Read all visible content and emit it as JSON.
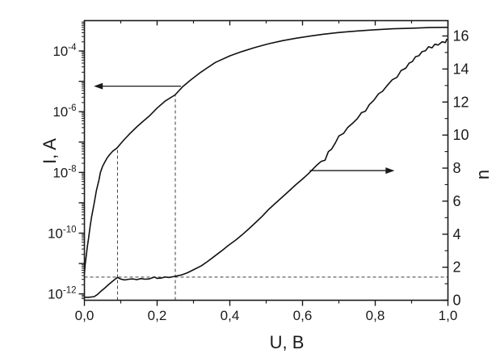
{
  "chart_data": {
    "type": "line",
    "title": "",
    "xlabel": "U, B",
    "x_range": [
      0.0,
      1.0
    ],
    "x_ticks": [
      {
        "v": 0.0,
        "label": "0,0"
      },
      {
        "v": 0.2,
        "label": "0,2"
      },
      {
        "v": 0.4,
        "label": "0,4"
      },
      {
        "v": 0.6,
        "label": "0,6"
      },
      {
        "v": 0.8,
        "label": "0,8"
      },
      {
        "v": 1.0,
        "label": "1,0"
      }
    ],
    "x_minor_ticks": [
      0.1,
      0.3,
      0.5,
      0.7,
      0.9
    ],
    "left_axis": {
      "label": "I, A",
      "scale": "log10",
      "range_log10": [
        -12.21,
        -3.0
      ],
      "labeled_exponents": [
        -4,
        -6,
        -8,
        -10,
        -12
      ],
      "tick_label_base": "10",
      "minor_mantissas": [
        2,
        3,
        4,
        5,
        6,
        7,
        8,
        9
      ]
    },
    "right_axis": {
      "label": "n",
      "range": [
        0,
        16.93
      ],
      "major_ticks": [
        0,
        2,
        4,
        6,
        8,
        10,
        12,
        14,
        16
      ],
      "major_tick_labels": [
        "0",
        "2",
        "4",
        "6",
        "8",
        "10",
        "12",
        "14",
        "16"
      ],
      "minor_step": 1
    },
    "legend": null,
    "grid": false,
    "series": [
      {
        "name": "current-voltage-curve",
        "axis": "left",
        "x": [
          0.0,
          0.002,
          0.004,
          0.008,
          0.011,
          0.016,
          0.02,
          0.027,
          0.033,
          0.04,
          0.044,
          0.05,
          0.056,
          0.062,
          0.069,
          0.078,
          0.089,
          0.1,
          0.111,
          0.125,
          0.144,
          0.16,
          0.178,
          0.2,
          0.222,
          0.249,
          0.27,
          0.293,
          0.32,
          0.36,
          0.4,
          0.433,
          0.47,
          0.507,
          0.545,
          0.582,
          0.62,
          0.656,
          0.7,
          0.751,
          0.8,
          0.85,
          0.9,
          0.95,
          1.0
        ],
        "log10_y": [
          -11.35,
          -11.05,
          -10.85,
          -10.45,
          -10.2,
          -9.75,
          -9.45,
          -9.0,
          -8.6,
          -8.25,
          -8.0,
          -7.8,
          -7.66,
          -7.53,
          -7.42,
          -7.3,
          -7.2,
          -7.05,
          -6.9,
          -6.72,
          -6.5,
          -6.33,
          -6.15,
          -5.88,
          -5.65,
          -5.45,
          -5.18,
          -4.95,
          -4.7,
          -4.38,
          -4.16,
          -4.02,
          -3.88,
          -3.76,
          -3.66,
          -3.58,
          -3.51,
          -3.45,
          -3.39,
          -3.34,
          -3.3,
          -3.27,
          -3.25,
          -3.23,
          -3.22
        ]
      },
      {
        "name": "ideality-factor-curve",
        "axis": "right",
        "x": [
          0.0,
          0.012,
          0.027,
          0.036,
          0.044,
          0.056,
          0.067,
          0.078,
          0.091,
          0.1,
          0.111,
          0.122,
          0.133,
          0.144,
          0.156,
          0.167,
          0.178,
          0.193,
          0.2,
          0.211,
          0.222,
          0.233,
          0.249,
          0.267,
          0.284,
          0.304,
          0.322,
          0.34,
          0.36,
          0.378,
          0.396,
          0.416,
          0.433,
          0.451,
          0.471,
          0.489,
          0.507,
          0.527,
          0.544,
          0.562,
          0.582,
          0.6,
          0.618,
          0.638,
          0.651,
          0.662,
          0.671,
          0.68,
          0.691,
          0.7,
          0.713,
          0.724,
          0.738,
          0.751,
          0.762,
          0.773,
          0.784,
          0.796,
          0.809,
          0.82,
          0.833,
          0.847,
          0.86,
          0.871,
          0.884,
          0.893,
          0.902,
          0.911,
          0.92,
          0.929,
          0.938,
          0.947,
          0.956,
          0.964,
          0.973,
          0.984,
          0.993,
          0.997
        ],
        "y": [
          0.18,
          0.18,
          0.22,
          0.35,
          0.52,
          0.74,
          0.96,
          1.16,
          1.38,
          1.28,
          1.23,
          1.27,
          1.29,
          1.25,
          1.31,
          1.27,
          1.29,
          1.41,
          1.32,
          1.34,
          1.41,
          1.38,
          1.45,
          1.53,
          1.67,
          1.89,
          2.09,
          2.37,
          2.7,
          3.0,
          3.32,
          3.64,
          3.95,
          4.3,
          4.7,
          5.08,
          5.5,
          5.9,
          6.24,
          6.6,
          7.0,
          7.34,
          7.7,
          8.15,
          8.4,
          8.48,
          9.0,
          9.15,
          9.55,
          9.95,
          10.1,
          10.45,
          10.72,
          11.0,
          11.35,
          11.45,
          11.85,
          12.1,
          12.5,
          12.65,
          13.0,
          13.35,
          13.5,
          13.9,
          14.05,
          14.35,
          14.45,
          14.75,
          14.8,
          15.05,
          15.1,
          15.35,
          15.28,
          15.5,
          15.45,
          15.65,
          15.6,
          15.8
        ]
      }
    ],
    "annotations": {
      "dashed_vline_1": {
        "U": 0.091,
        "to_log10I": -7.2
      },
      "dashed_vline_2": {
        "U": 0.25,
        "to_log10I": -5.45
      },
      "dashed_hline": {
        "n": 1.4
      },
      "arrow_left": {
        "points_to": "left-axis",
        "at_log10I": -5.16,
        "U_from": 0.266,
        "U_to": 0.026
      },
      "arrow_right": {
        "points_to": "right-axis",
        "at_n": 7.85,
        "U_from": 0.62,
        "U_to": 0.853
      }
    },
    "colors": {
      "curve": "#111111",
      "dashed": "#3f3f3f",
      "frame": "#1a1a1a",
      "text": "#1a1a1a",
      "background": "#ffffff"
    }
  }
}
